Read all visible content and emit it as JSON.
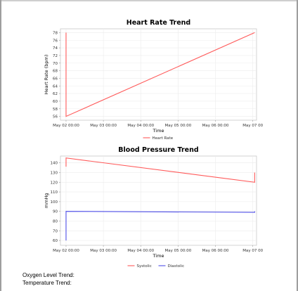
{
  "chart_data": [
    {
      "type": "line",
      "title": "Heart Rate Trend",
      "xlabel": "Time",
      "ylabel": "Heart Rate (bpm)",
      "ylim": [
        55,
        79
      ],
      "yticks": [
        "78",
        "76",
        "74",
        "72",
        "70",
        "68",
        "66",
        "64",
        "62",
        "60",
        "58",
        "56"
      ],
      "xticks": [
        "May 02 00:00",
        "May 03 00:00",
        "May 04 00:00",
        "May 05 00:00",
        "May 06 00:00",
        "May 07 00"
      ],
      "grid": true,
      "legend_position": "bottom",
      "series": [
        {
          "name": "Heart Rate",
          "color": "#ff5a5a",
          "points": [
            {
              "x": 0.0,
              "y": 78
            },
            {
              "x": 0.0,
              "y": 56
            },
            {
              "x": 5.05,
              "y": 78
            }
          ]
        }
      ]
    },
    {
      "type": "line",
      "title": "Blood Pressure Trend",
      "xlabel": "Time",
      "ylabel": "mmHg",
      "ylim": [
        55,
        147
      ],
      "yticks": [
        "140",
        "130",
        "120",
        "110",
        "100",
        "90",
        "80",
        "70",
        "60"
      ],
      "xticks": [
        "May 02 00:00",
        "May 03 00:00",
        "May 04 00:00",
        "May 05 00:00",
        "May 06 00:00",
        "May 07 00"
      ],
      "grid": true,
      "legend_position": "bottom",
      "series": [
        {
          "name": "Systolic",
          "color": "#ff5a5a",
          "points": [
            {
              "x": 0.0,
              "y": 136
            },
            {
              "x": 0.0,
              "y": 145
            },
            {
              "x": 5.05,
              "y": 120
            },
            {
              "x": 5.05,
              "y": 130
            }
          ]
        },
        {
          "name": "Diastolic",
          "color": "#4f4fe8",
          "points": [
            {
              "x": 0.0,
              "y": 60
            },
            {
              "x": 0.0,
              "y": 90
            },
            {
              "x": 5.05,
              "y": 89
            },
            {
              "x": 5.05,
              "y": 90
            }
          ]
        }
      ]
    }
  ],
  "footer": {
    "oxygen_label": "Oxygen Level Trend:",
    "temperature_label": "Temperature Trend:"
  }
}
